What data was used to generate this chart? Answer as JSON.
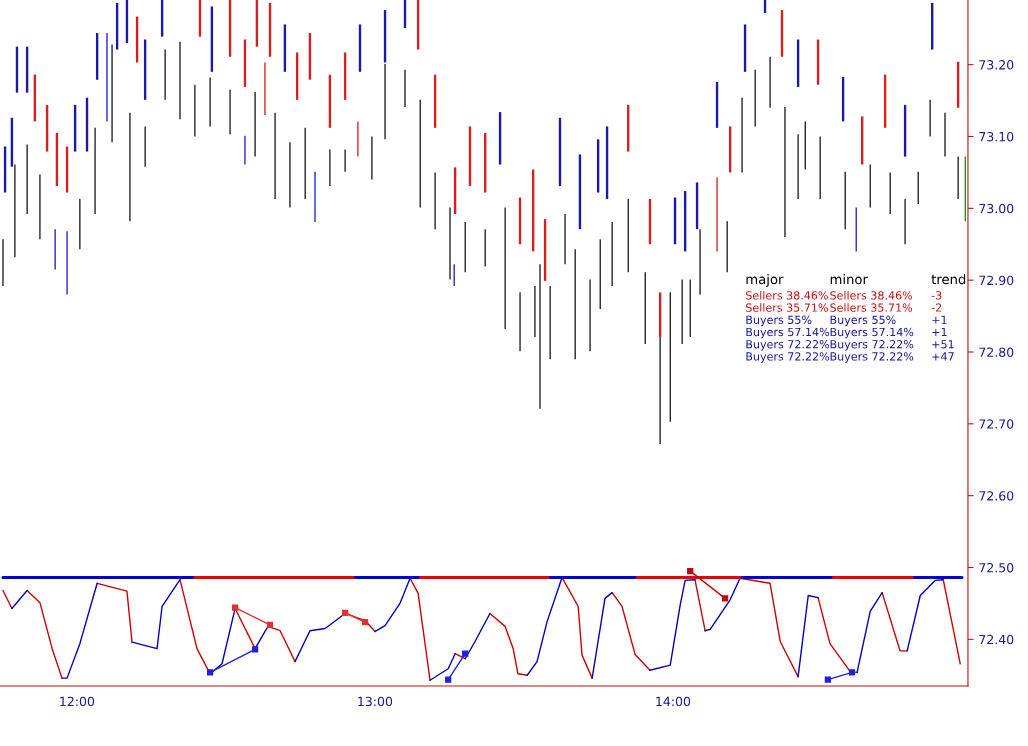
{
  "chart_data": {
    "type": "bar",
    "xlim": [
      11.742,
      14.99
    ],
    "ylim": [
      72.335,
      73.29
    ],
    "xticks": [
      {
        "value": 12,
        "label": "12:00"
      },
      {
        "value": 13,
        "label": "13:00"
      },
      {
        "value": 14,
        "label": "14:00"
      }
    ],
    "yticks": [
      {
        "value": 72.4,
        "label": "72.40"
      },
      {
        "value": 72.5,
        "label": "72.50"
      },
      {
        "value": 72.6,
        "label": "72.60"
      },
      {
        "value": 72.7,
        "label": "72.70"
      },
      {
        "value": 72.8,
        "label": "72.80"
      },
      {
        "value": 72.9,
        "label": "72.90"
      },
      {
        "value": 73.0,
        "label": "73.00"
      },
      {
        "value": 73.1,
        "label": "73.10"
      },
      {
        "value": 73.2,
        "label": "73.20"
      }
    ],
    "grid": false,
    "legend": false,
    "annotations": [
      "major",
      "minor",
      "trend",
      "Sellers 38.46%",
      "Sellers 38.46%",
      "-3",
      "Sellers 35.71%",
      "Sellers 35.71%",
      "-2",
      "Buyers 55%",
      "Buyers 55%",
      "+1",
      "Buyers 57.14%",
      "Buyers 57.14%",
      "+1",
      "Buyers 72.22%",
      "Buyers 72.22%",
      "+51",
      "Buyers 72.22%",
      "Buyers 72.22%",
      "+47"
    ],
    "series": [
      {
        "x": [
          11.752,
          11.792,
          11.833,
          11.876,
          11.927,
          11.967,
          12.01,
          12.061,
          12.101,
          12.118,
          12.178,
          12.229,
          12.296,
          12.346,
          12.396,
          12.447,
          12.514,
          12.564,
          12.598,
          12.631,
          12.665,
          12.715,
          12.766,
          12.799,
          12.849,
          12.9,
          12.943,
          12.99,
          13.034,
          13.101,
          13.152,
          13.202,
          13.252,
          13.266,
          13.303,
          13.37,
          13.437,
          13.487,
          13.537,
          13.554,
          13.588,
          13.638,
          13.672,
          13.722,
          13.756,
          13.796,
          13.85,
          13.907,
          13.957,
          13.991,
          14.031,
          14.058,
          14.091,
          14.148,
          14.182,
          14.232,
          14.276,
          14.326,
          14.376,
          14.42,
          14.444,
          14.494,
          14.578,
          14.615,
          14.662,
          14.729,
          14.779,
          14.823,
          14.863,
          14.913,
          14.957,
          14.981
        ],
        "base": [
          72.892,
          72.932,
          72.992,
          72.957,
          72.915,
          72.88,
          72.943,
          72.992,
          73.121,
          73.092,
          72.982,
          73.058,
          73.151,
          73.124,
          73.1,
          73.114,
          73.103,
          73.061,
          73.072,
          73.13,
          73.013,
          73.001,
          73.013,
          72.981,
          73.031,
          73.051,
          73.072,
          73.04,
          73.096,
          73.141,
          73.001,
          72.971,
          72.901,
          72.892,
          72.911,
          72.919,
          72.832,
          72.801,
          72.821,
          72.721,
          72.79,
          72.922,
          72.79,
          72.801,
          72.86,
          72.892,
          72.911,
          72.811,
          72.672,
          72.703,
          72.811,
          72.821,
          72.88,
          72.94,
          72.911,
          73.05,
          73.114,
          73.14,
          72.96,
          73.013,
          73.054,
          73.013,
          72.971,
          72.94,
          73.001,
          72.992,
          72.95,
          73.006,
          73.1,
          73.072,
          73.013,
          72.982
        ],
        "values": [
          0.065,
          0.129,
          0.097,
          0.09,
          0.056,
          0.088,
          0.07,
          0.12,
          0.123,
          0.136,
          0.151,
          0.056,
          0.07,
          0.108,
          0.072,
          0.068,
          0.062,
          0.04,
          0.09,
          0.073,
          0.12,
          0.091,
          0.099,
          0.07,
          0.051,
          0.031,
          0.049,
          0.06,
          0.105,
          0.052,
          0.15,
          0.079,
          0.1,
          0.03,
          0.07,
          0.052,
          0.169,
          0.082,
          0.071,
          0.201,
          0.102,
          0.07,
          0.153,
          0.1,
          0.097,
          0.089,
          0.102,
          0.1,
          0.149,
          0.18,
          0.09,
          0.08,
          0.091,
          0.103,
          0.071,
          0.104,
          0.079,
          0.071,
          0.181,
          0.09,
          0.067,
          0.087,
          0.08,
          0.061,
          0.06,
          0.058,
          0.063,
          0.045,
          0.051,
          0.061,
          0.059,
          0.09
        ],
        "colors": [
          "#000000",
          "#000000",
          "#000000",
          "#000000",
          "#0000cc",
          "#0000cc",
          "#000000",
          "#000000",
          "#0000cc",
          "#000000",
          "#000000",
          "#000000",
          "#000000",
          "#000000",
          "#000000",
          "#000000",
          "#000000",
          "#0000cc",
          "#000000",
          "#dd0000",
          "#000000",
          "#000000",
          "#000000",
          "#0000cc",
          "#000000",
          "#000000",
          "#dd0000",
          "#000000",
          "#000000",
          "#000000",
          "#000000",
          "#000000",
          "#000000",
          "#0000cc",
          "#000000",
          "#000000",
          "#000000",
          "#000000",
          "#000000",
          "#000000",
          "#000000",
          "#000000",
          "#000000",
          "#000000",
          "#000000",
          "#000000",
          "#000000",
          "#000000",
          "#000000",
          "#000000",
          "#000000",
          "#000000",
          "#000000",
          "#dd0000",
          "#000000",
          "#000000",
          "#000000",
          "#000000",
          "#000000",
          "#000000",
          "#000000",
          "#000000",
          "#000000",
          "#0000cc",
          "#000000",
          "#000000",
          "#000000",
          "#000000",
          "#000000",
          "#000000",
          "#000000",
          "#008000"
        ]
      },
      {
        "x": [
          11.759,
          11.782,
          11.799,
          11.833,
          11.859,
          11.9,
          11.933,
          11.967,
          11.994,
          12.034,
          12.068,
          12.135,
          12.168,
          12.202,
          12.229,
          12.286,
          12.413,
          12.453,
          12.514,
          12.564,
          12.604,
          12.648,
          12.698,
          12.739,
          12.782,
          12.849,
          12.9,
          12.95,
          13.034,
          13.101,
          13.145,
          13.202,
          13.269,
          13.319,
          13.37,
          13.42,
          13.487,
          13.531,
          13.571,
          13.621,
          13.688,
          13.749,
          13.779,
          13.85,
          13.923,
          13.957,
          14.007,
          14.041,
          14.081,
          14.148,
          14.192,
          14.242,
          14.309,
          14.366,
          14.42,
          14.487,
          14.571,
          14.635,
          14.712,
          14.779,
          14.87,
          14.957
        ],
        "base": [
          73.022,
          73.058,
          73.161,
          73.161,
          73.121,
          73.079,
          73.031,
          73.022,
          73.079,
          73.079,
          73.179,
          73.221,
          73.23,
          73.203,
          73.151,
          73.239,
          73.239,
          73.19,
          73.211,
          73.169,
          73.225,
          73.211,
          73.19,
          73.151,
          73.179,
          73.112,
          73.151,
          73.19,
          73.203,
          73.251,
          73.221,
          73.112,
          72.992,
          73.031,
          73.022,
          73.061,
          72.95,
          72.94,
          72.899,
          73.031,
          72.971,
          73.022,
          73.013,
          73.079,
          72.95,
          72.821,
          72.95,
          72.94,
          72.971,
          73.112,
          73.05,
          73.19,
          73.272,
          73.211,
          73.169,
          73.172,
          73.121,
          73.061,
          73.112,
          73.072,
          73.221,
          73.14
        ],
        "values": [
          0.064,
          0.068,
          0.064,
          0.064,
          0.065,
          0.065,
          0.074,
          0.064,
          0.065,
          0.075,
          0.065,
          0.065,
          0.06,
          0.064,
          0.084,
          0.051,
          0.051,
          0.091,
          0.079,
          0.066,
          0.065,
          0.075,
          0.066,
          0.066,
          0.065,
          0.074,
          0.066,
          0.066,
          0.073,
          0.039,
          0.069,
          0.074,
          0.065,
          0.083,
          0.083,
          0.073,
          0.065,
          0.114,
          0.086,
          0.095,
          0.104,
          0.074,
          0.101,
          0.065,
          0.063,
          0.062,
          0.065,
          0.084,
          0.065,
          0.064,
          0.064,
          0.066,
          0.018,
          0.065,
          0.066,
          0.063,
          0.062,
          0.067,
          0.074,
          0.072,
          0.065,
          0.064
        ],
        "colors": [
          "#1a1aa8",
          "#1a1aa8",
          "#1a1aa8",
          "#1a1aa8",
          "#d42020",
          "#d42020",
          "#d42020",
          "#d42020",
          "#1a1aa8",
          "#1a1aa8",
          "#1a1aa8",
          "#1a1aa8",
          "#1a1aa8",
          "#d42020",
          "#1a1aa8",
          "#1a1aa8",
          "#d42020",
          "#1a1aa8",
          "#d42020",
          "#d42020",
          "#d42020",
          "#d42020",
          "#1a1aa8",
          "#d42020",
          "#d42020",
          "#d42020",
          "#d42020",
          "#1a1aa8",
          "#1a1aa8",
          "#1a1aa8",
          "#d42020",
          "#d42020",
          "#d42020",
          "#d42020",
          "#d42020",
          "#1a1aa8",
          "#d42020",
          "#d42020",
          "#d42020",
          "#1a1aa8",
          "#1a1aa8",
          "#1a1aa8",
          "#1a1aa8",
          "#d42020",
          "#d42020",
          "#d42020",
          "#1a1aa8",
          "#1a1aa8",
          "#1a1aa8",
          "#1a1aa8",
          "#d42020",
          "#1a1aa8",
          "#1a1aa8",
          "#d42020",
          "#1a1aa8",
          "#d42020",
          "#1a1aa8",
          "#d42020",
          "#d42020",
          "#1a1aa8",
          "#1a1aa8",
          "#d42020"
        ]
      },
      {
        "type": "line",
        "color": "#cc0000",
        "x": [
          11.752,
          11.782,
          null,
          11.833,
          11.876,
          11.917,
          11.95,
          null,
          12.068,
          12.168,
          12.185,
          null,
          12.346,
          12.403,
          12.447,
          null,
          12.531,
          12.598,
          null,
          12.641,
          12.682,
          12.732,
          null,
          12.9,
          12.967,
          13.001,
          null,
          13.118,
          13.145,
          13.185,
          null,
          13.269,
          13.303,
          null,
          13.386,
          13.437,
          13.464,
          13.48,
          13.511,
          null,
          13.628,
          13.682,
          13.695,
          13.729,
          null,
          13.796,
          13.829,
          13.873,
          13.923,
          null,
          14.074,
          14.108,
          null,
          14.225,
          14.326,
          14.36,
          14.42,
          null,
          14.487,
          14.527,
          14.595,
          14.618,
          null,
          14.702,
          14.762,
          14.786,
          null,
          14.907,
          14.947,
          14.964
        ],
        "values": [
          72.468,
          72.443,
          null,
          72.468,
          72.451,
          72.387,
          72.346,
          null,
          72.478,
          72.467,
          72.396,
          null,
          72.483,
          72.387,
          72.352,
          null,
          72.443,
          72.387,
          null,
          72.418,
          72.412,
          72.369,
          null,
          72.436,
          72.426,
          72.411,
          null,
          72.485,
          72.464,
          72.343,
          null,
          72.38,
          72.373,
          null,
          72.436,
          72.418,
          72.387,
          72.352,
          72.35,
          null,
          72.486,
          72.446,
          72.378,
          72.346,
          null,
          72.465,
          72.446,
          72.379,
          72.357,
          null,
          72.483,
          72.412,
          null,
          72.485,
          72.478,
          72.397,
          72.348,
          null,
          72.458,
          72.394,
          72.355,
          72.354,
          null,
          72.465,
          72.384,
          72.384,
          null,
          72.483,
          72.401,
          72.366
        ]
      },
      {
        "type": "line",
        "color": "#0000bb",
        "x": [
          11.782,
          11.833,
          null,
          11.95,
          11.967,
          12.01,
          12.068,
          null,
          12.185,
          12.269,
          12.286,
          12.346,
          null,
          12.447,
          12.487,
          12.531,
          null,
          12.598,
          12.641,
          null,
          12.732,
          12.782,
          12.833,
          12.9,
          null,
          13.001,
          13.034,
          13.084,
          13.118,
          null,
          13.185,
          13.246,
          13.269,
          null,
          13.303,
          13.336,
          13.386,
          null,
          13.511,
          13.544,
          13.578,
          13.628,
          null,
          13.729,
          13.772,
          13.796,
          null,
          13.923,
          13.991,
          14.024,
          14.041,
          14.074,
          null,
          14.108,
          14.125,
          14.192,
          14.225,
          null,
          14.42,
          14.454,
          14.487,
          null,
          14.618,
          14.662,
          14.702,
          null,
          14.786,
          14.83,
          14.88,
          14.907
        ],
        "values": [
          72.443,
          72.468,
          null,
          72.346,
          72.346,
          72.394,
          72.478,
          null,
          72.396,
          72.387,
          72.446,
          72.483,
          null,
          72.352,
          72.366,
          72.443,
          null,
          72.387,
          72.418,
          null,
          72.369,
          72.412,
          72.415,
          72.436,
          null,
          72.411,
          72.419,
          72.45,
          72.485,
          null,
          72.343,
          72.359,
          72.38,
          null,
          72.373,
          72.397,
          72.436,
          null,
          72.35,
          72.369,
          72.425,
          72.486,
          null,
          72.346,
          72.457,
          72.465,
          null,
          72.357,
          72.364,
          72.447,
          72.482,
          72.483,
          null,
          72.412,
          72.414,
          72.455,
          72.485,
          null,
          72.348,
          72.461,
          72.458,
          null,
          72.354,
          72.439,
          72.465,
          null,
          72.384,
          72.461,
          72.482,
          72.483
        ]
      },
      {
        "type": "line",
        "color": "#0000dd",
        "x": [
          11.752,
          12.396,
          null,
          12.927,
          13.152,
          null,
          13.581,
          13.88,
          null,
          14.225,
          14.538,
          null,
          14.803,
          14.97
        ],
        "values": [
          72.486,
          72.486,
          null,
          72.486,
          72.486,
          null,
          72.486,
          72.486,
          null,
          72.486,
          72.486,
          null,
          72.486,
          72.486
        ]
      },
      {
        "type": "line",
        "color": "#ee0000",
        "x": [
          12.396,
          12.927,
          null,
          13.152,
          13.581,
          null,
          13.88,
          14.225,
          null,
          14.538,
          14.803
        ],
        "values": [
          72.486,
          72.486,
          null,
          72.486,
          72.486,
          null,
          72.486,
          72.486,
          null,
          72.486,
          72.486
        ]
      },
      {
        "type": "line",
        "x": [
          12.531,
          12.648
        ],
        "values": [
          72.444,
          72.42
        ],
        "color": "#e03030",
        "marker": "square"
      },
      {
        "type": "line",
        "x": [
          12.9,
          12.967
        ],
        "values": [
          72.437,
          72.424
        ],
        "color": "#e03030",
        "marker": "square"
      },
      {
        "type": "line",
        "x": [
          12.447,
          12.598
        ],
        "values": [
          72.354,
          72.386
        ],
        "color": "#2020e0",
        "marker": "square"
      },
      {
        "type": "line",
        "x": [
          13.246,
          13.303
        ],
        "values": [
          72.344,
          72.38
        ],
        "color": "#2020e0",
        "marker": "square"
      },
      {
        "type": "line",
        "x": [
          14.058,
          14.175
        ],
        "values": [
          72.495,
          72.457
        ],
        "color": "#cc0000",
        "marker": "square"
      },
      {
        "type": "line",
        "x": [
          14.52,
          14.601
        ],
        "values": [
          72.344,
          72.354
        ],
        "color": "#2020e0",
        "marker": "square"
      }
    ]
  }
}
